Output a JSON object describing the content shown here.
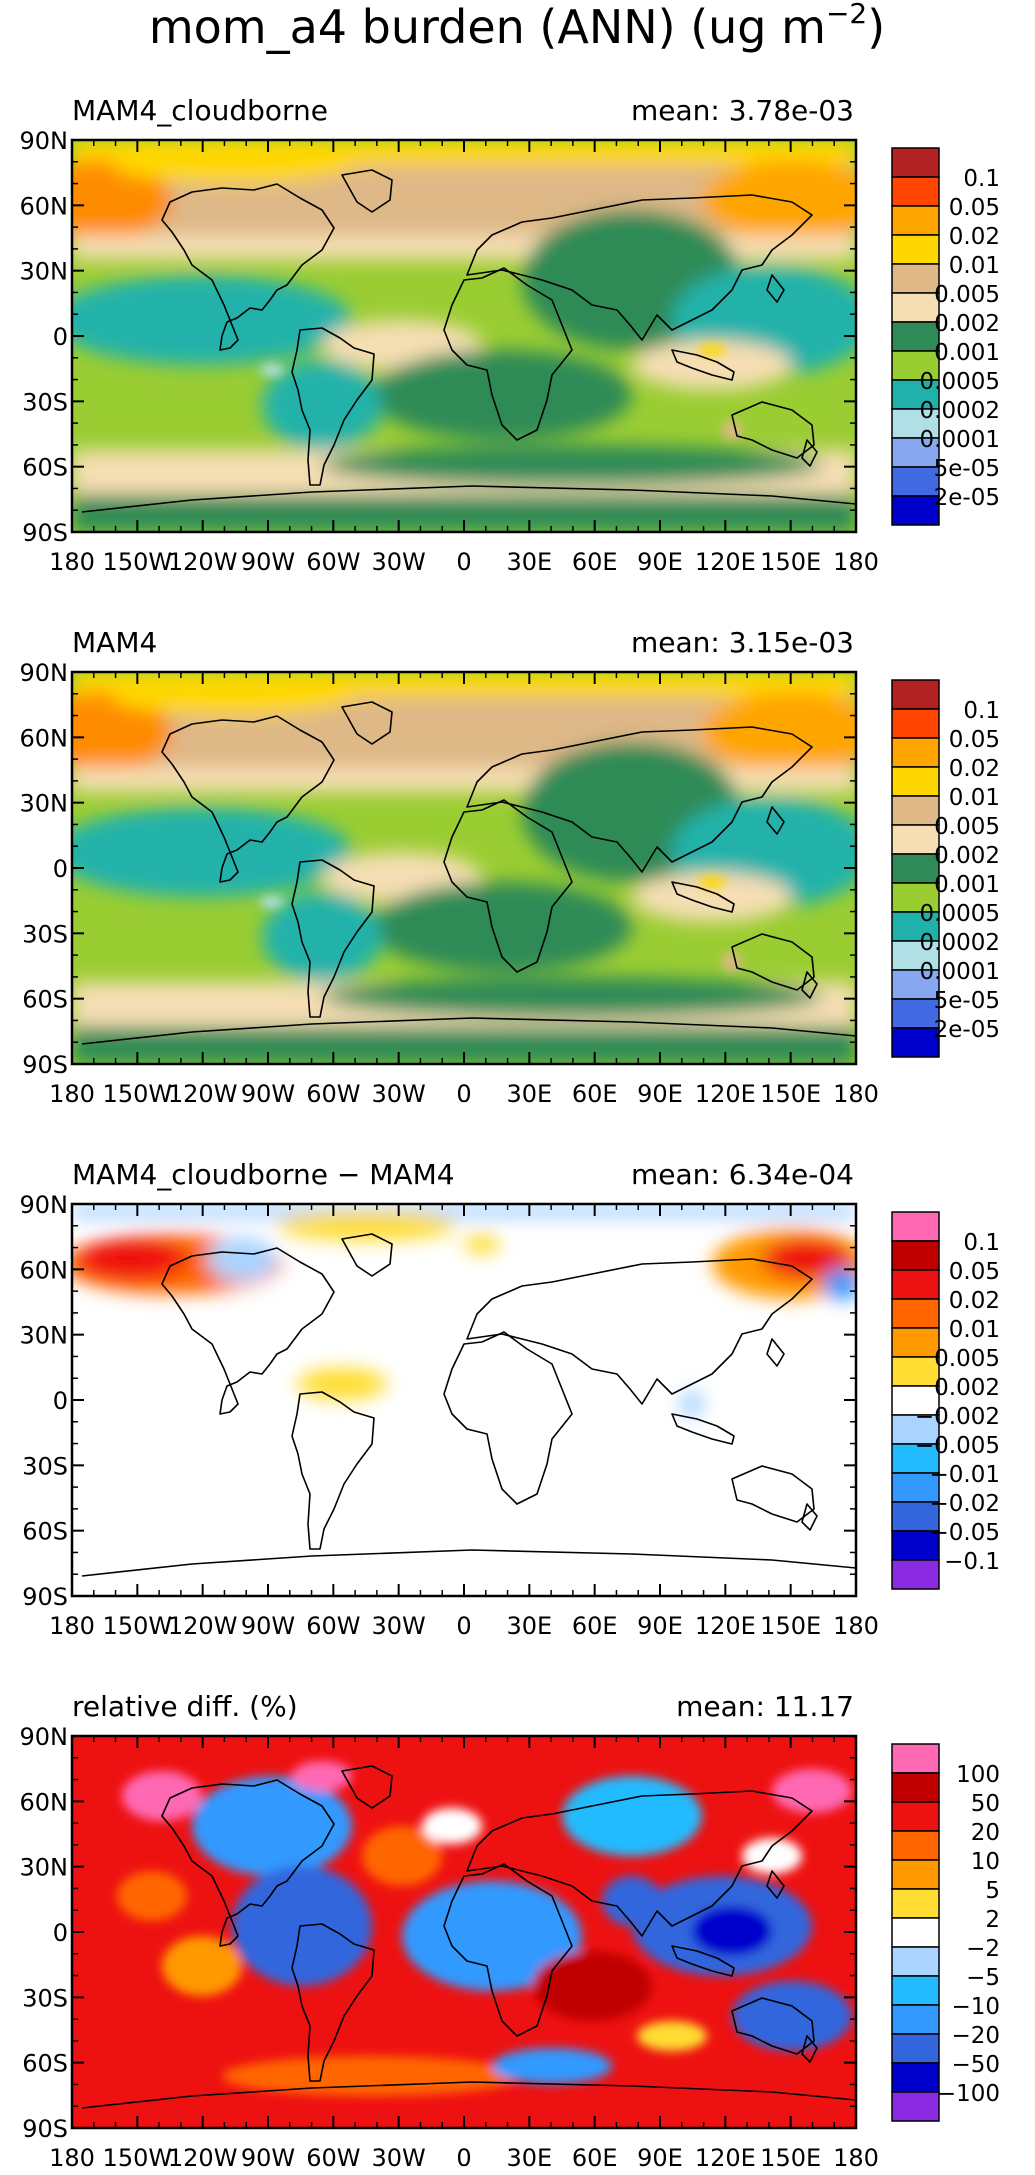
{
  "title": {
    "main": "mom_a4 burden (ANN) (ug m",
    "exp": "−2",
    "close": ")"
  },
  "lat_labels": [
    "90N",
    "60N",
    "30N",
    "0",
    "30S",
    "60S",
    "90S"
  ],
  "lon_labels": [
    "180",
    "150W",
    "120W",
    "90W",
    "60W",
    "30W",
    "0",
    "30E",
    "60E",
    "90E",
    "120E",
    "150E",
    "180"
  ],
  "chart_data": [
    {
      "type": "heatmap",
      "subplot": "MAM4_cloudborne",
      "mean_text": "mean: 3.78e-03",
      "xrange": [
        -180,
        180
      ],
      "yrange": [
        -90,
        90
      ],
      "colorbar": {
        "labels": [
          "0.1",
          "0.05",
          "0.02",
          "0.01",
          "0.005",
          "0.002",
          "0.001",
          "0.0005",
          "0.0002",
          "0.0001",
          "5e-05",
          "2e-05"
        ],
        "colors": [
          "#b22222",
          "#ff4500",
          "#ffa500",
          "#ffd700",
          "#deb887",
          "#f5deb3",
          "#2e8b57",
          "#9acd32",
          "#20b2aa",
          "#b0e0e6",
          "#87a8f0",
          "#4169e1",
          "#0000cd"
        ]
      }
    },
    {
      "type": "heatmap",
      "subplot": "MAM4",
      "mean_text": "mean: 3.15e-03",
      "xrange": [
        -180,
        180
      ],
      "yrange": [
        -90,
        90
      ],
      "colorbar": {
        "labels": [
          "0.1",
          "0.05",
          "0.02",
          "0.01",
          "0.005",
          "0.002",
          "0.001",
          "0.0005",
          "0.0002",
          "0.0001",
          "5e-05",
          "2e-05"
        ],
        "colors": [
          "#b22222",
          "#ff4500",
          "#ffa500",
          "#ffd700",
          "#deb887",
          "#f5deb3",
          "#2e8b57",
          "#9acd32",
          "#20b2aa",
          "#b0e0e6",
          "#87a8f0",
          "#4169e1",
          "#0000cd"
        ]
      }
    },
    {
      "type": "heatmap",
      "subplot": "MAM4_cloudborne − MAM4",
      "mean_text": "mean: 6.34e-04",
      "xrange": [
        -180,
        180
      ],
      "yrange": [
        -90,
        90
      ],
      "colorbar": {
        "labels": [
          "0.1",
          "0.05",
          "0.02",
          "0.01",
          "0.005",
          "0.002",
          "−0.002",
          "−0.005",
          "−0.01",
          "−0.02",
          "−0.05",
          "−0.1"
        ],
        "colors": [
          "#ff69b4",
          "#c00000",
          "#ee1111",
          "#ff6600",
          "#ff9900",
          "#ffdd33",
          "#ffffff",
          "#aad4ff",
          "#22bbff",
          "#3399ff",
          "#3366dd",
          "#0000cc",
          "#8a2be2"
        ]
      }
    },
    {
      "type": "heatmap",
      "subplot": "relative diff. (%)",
      "mean_text": "mean: 11.17",
      "xrange": [
        -180,
        180
      ],
      "yrange": [
        -90,
        90
      ],
      "colorbar": {
        "labels": [
          "100",
          "50",
          "20",
          "10",
          "5",
          "2",
          "−2",
          "−5",
          "−10",
          "−20",
          "−50",
          "−100"
        ],
        "colors": [
          "#ff69b4",
          "#c00000",
          "#ee1111",
          "#ff6600",
          "#ff9900",
          "#ffdd33",
          "#ffffff",
          "#aad4ff",
          "#22bbff",
          "#3399ff",
          "#3366dd",
          "#0000cc",
          "#8a2be2"
        ]
      }
    }
  ]
}
